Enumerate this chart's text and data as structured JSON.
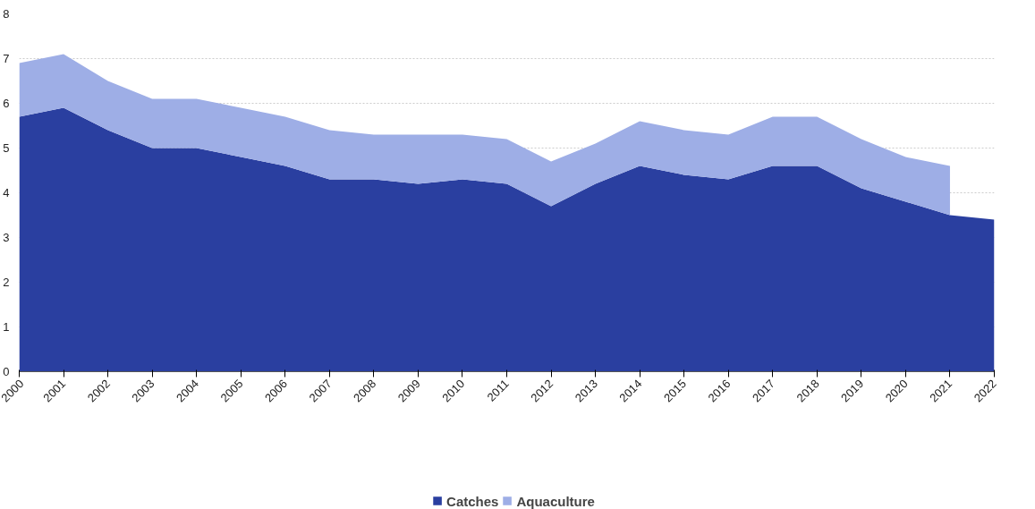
{
  "chart_data": {
    "type": "area",
    "stacked": true,
    "categories": [
      "2000",
      "2001",
      "2002",
      "2003",
      "2004",
      "2005",
      "2006",
      "2007",
      "2008",
      "2009",
      "2010",
      "2011",
      "2012",
      "2013",
      "2014",
      "2015",
      "2016",
      "2017",
      "2018",
      "2019",
      "2020",
      "2021",
      "2022"
    ],
    "series": [
      {
        "name": "Catches",
        "color": "#2a3fa0",
        "values": [
          5.7,
          5.9,
          5.4,
          5.0,
          5.0,
          4.8,
          4.6,
          4.3,
          4.3,
          4.2,
          4.3,
          4.2,
          3.7,
          4.2,
          4.6,
          4.4,
          4.3,
          4.6,
          4.6,
          4.1,
          3.8,
          3.5,
          3.4
        ]
      },
      {
        "name": "Aquaculture",
        "color": "#9eaee6",
        "values": [
          1.2,
          1.2,
          1.1,
          1.1,
          1.1,
          1.1,
          1.1,
          1.1,
          1.0,
          1.1,
          1.0,
          1.0,
          1.0,
          0.9,
          1.0,
          1.0,
          1.0,
          1.1,
          1.1,
          1.1,
          1.0,
          1.1,
          null
        ]
      }
    ],
    "ylim": [
      0,
      8
    ],
    "yticks": [
      0,
      1,
      2,
      3,
      4,
      5,
      6,
      7,
      8
    ],
    "grid": "y",
    "legend": "bottom"
  }
}
